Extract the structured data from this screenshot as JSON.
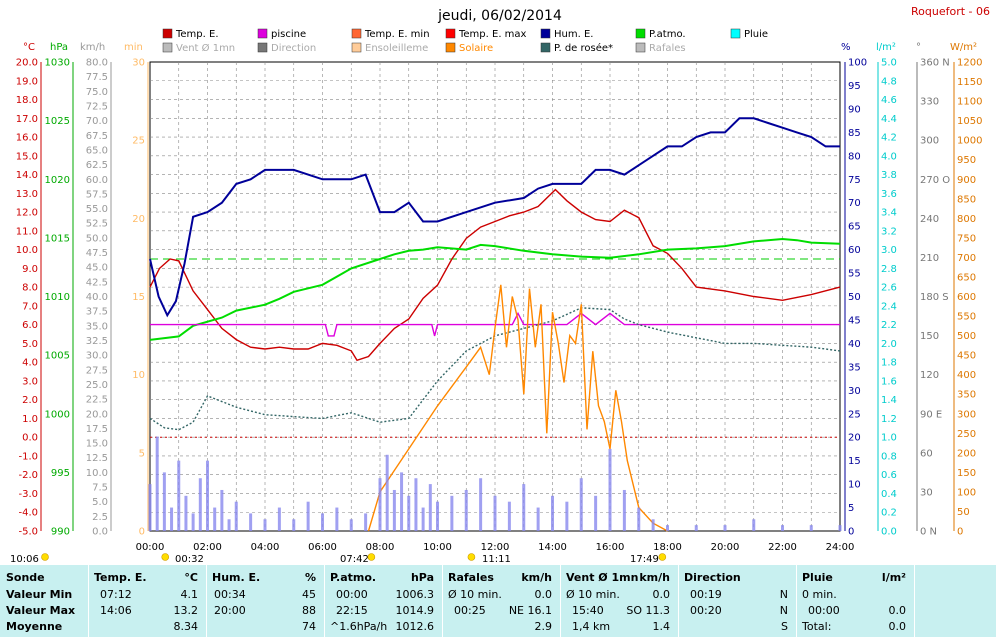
{
  "header": {
    "title": "jeudi, 06/02/2014",
    "station": "Roquefort - 06"
  },
  "legend": [
    {
      "label": "Temp. E.",
      "color": "#cc0000"
    },
    {
      "label": "piscine",
      "color": "#dd00dd"
    },
    {
      "label": "Temp. E. min",
      "color": "#ff6633"
    },
    {
      "label": "Temp. E. max",
      "color": "#ff0000"
    },
    {
      "label": "Hum. E.",
      "color": "#000099"
    },
    {
      "label": "P.atmo.",
      "color": "#00dd00"
    },
    {
      "label": "Pluie",
      "color": "#00ffff"
    },
    {
      "label": "Vent Ø 1mn",
      "color": "#bbbbbb"
    },
    {
      "label": "Direction",
      "color": "#777777"
    },
    {
      "label": "Ensoleilleme",
      "color": "#ffcc99"
    },
    {
      "label": "Solaire",
      "color": "#ff8800"
    },
    {
      "label": "P. de rosée*",
      "color": "#336666"
    },
    {
      "label": "Rafales",
      "color": "#bbbbbb"
    }
  ],
  "axes_units": {
    "temp": "°C",
    "press": "hPa",
    "wind": "km/h",
    "min": "min",
    "hum": "%",
    "rain": "l/m²",
    "dir": "°",
    "solar": "W/m²"
  },
  "axes_ticks": {
    "temp": [
      "20.0",
      "19.0",
      "18.0",
      "17.0",
      "16.0",
      "15.0",
      "14.0",
      "13.0",
      "12.0",
      "11.0",
      "10.0",
      "9.0",
      "8.0",
      "7.0",
      "6.0",
      "5.0",
      "4.0",
      "3.0",
      "2.0",
      "1.0",
      "0.0",
      "-1.0",
      "-2.0",
      "-3.0",
      "-4.0",
      "-5.0"
    ],
    "press": [
      "1030",
      "1025",
      "1020",
      "1015",
      "1010",
      "1005",
      "1000",
      "995",
      "990"
    ],
    "wind": [
      "80.0",
      "77.5",
      "75.0",
      "72.5",
      "70.0",
      "67.5",
      "65.0",
      "62.5",
      "60.0",
      "57.5",
      "55.0",
      "52.5",
      "50.0",
      "47.5",
      "45.0",
      "42.5",
      "40.0",
      "37.5",
      "35.0",
      "32.5",
      "30.0",
      "27.5",
      "25.0",
      "22.5",
      "20.0",
      "17.5",
      "15.0",
      "12.5",
      "10.0",
      "7.5",
      "5.0",
      "2.5",
      "0.0"
    ],
    "min": [
      "30",
      "25",
      "20",
      "15",
      "10",
      "5",
      "0"
    ],
    "hum": [
      "100",
      "95",
      "90",
      "85",
      "80",
      "75",
      "70",
      "65",
      "60",
      "55",
      "50",
      "45",
      "40",
      "35",
      "30",
      "25",
      "20",
      "15",
      "10",
      "5",
      "0"
    ],
    "rain": [
      "5.0",
      "4.8",
      "4.6",
      "4.4",
      "4.2",
      "4.0",
      "3.8",
      "3.6",
      "3.4",
      "3.2",
      "3.0",
      "2.8",
      "2.6",
      "2.4",
      "2.2",
      "2.0",
      "1.8",
      "1.6",
      "1.4",
      "1.2",
      "1.0",
      "0.8",
      "0.6",
      "0.4",
      "0.2",
      "0.0"
    ],
    "dir": [
      "360 N",
      "330",
      "300",
      "270 O",
      "240",
      "210",
      "180 S",
      "150",
      "120",
      "90 E",
      "60",
      "30",
      "0 N"
    ],
    "solar": [
      "1200",
      "1150",
      "1100",
      "1050",
      "1000",
      "950",
      "900",
      "850",
      "800",
      "750",
      "700",
      "650",
      "600",
      "550",
      "500",
      "450",
      "400",
      "350",
      "300",
      "250",
      "200",
      "150",
      "100",
      "50",
      "0"
    ],
    "time": [
      "00:00",
      "02:00",
      "04:00",
      "06:00",
      "08:00",
      "10:00",
      "12:00",
      "14:00",
      "16:00",
      "18:00",
      "20:00",
      "22:00",
      "24:00"
    ]
  },
  "sun_events": {
    "daylength": "10:06",
    "moon_set": "00:32",
    "sunrise": "07:42",
    "transit": "11:11",
    "sunset": "17:49"
  },
  "summary": {
    "sonde": {
      "header": "Sonde",
      "rows": [
        "Valeur Min",
        "Valeur Max",
        "Moyenne"
      ]
    },
    "temp": {
      "header": "Temp. E.",
      "unit": "°C",
      "min_time": "07:12",
      "min_val": "4.1",
      "max_time": "14:06",
      "max_val": "13.2",
      "avg_val": "8.34"
    },
    "hum": {
      "header": "Hum. E.",
      "unit": "%",
      "min_time": "00:34",
      "min_val": "45",
      "max_time": "20:00",
      "max_val": "88",
      "avg_val": "74"
    },
    "press": {
      "header": "P.atmo.",
      "unit": "hPa",
      "min_time": "00:00",
      "min_val": "1006.3",
      "max_time": "22:15",
      "max_val": "1014.9",
      "avg_note": "^1.6hPa/h",
      "avg_val": "1012.6"
    },
    "gust": {
      "header": "Rafales",
      "unit": "km/h",
      "min_note": "Ø 10 min.",
      "min_val": "0.0",
      "max_time": "00:25",
      "max_val": "NE 16.1",
      "avg_val": "2.9"
    },
    "wind": {
      "header": "Vent Ø 1mn",
      "unit": "km/h",
      "min_note": "Ø 10 min.",
      "min_val": "0.0",
      "max_time": "15:40",
      "max_val": "SO 11.3",
      "avg_note": "1,4 km",
      "avg_val": "1.4"
    },
    "dir": {
      "header": "Direction",
      "min_time": "00:19",
      "min_val": "N",
      "max_time": "00:20",
      "max_val": "N",
      "avg_val": "S"
    },
    "rain": {
      "header": "Pluie",
      "unit": "l/m²",
      "min_note": "0 min.",
      "max_time": "00:00",
      "max_val": "0.0",
      "avg_note": "Total:",
      "avg_val": "0.0"
    }
  },
  "chart_data": {
    "type": "line",
    "title": "jeudi, 06/02/2014",
    "x_unit": "hours",
    "xlim": [
      0,
      24
    ],
    "temp_axis_range": [
      -5,
      20
    ],
    "humidity_axis_range": [
      0,
      100
    ],
    "pressure_axis_range": [
      990,
      1030
    ],
    "wind_axis_range": [
      0,
      80
    ],
    "solar_axis_range": [
      0,
      1200
    ],
    "series": [
      {
        "name": "Temp. E.",
        "axis": "temp",
        "color": "#cc0000",
        "x": [
          0,
          0.33,
          0.7,
          1.0,
          1.5,
          2.0,
          2.5,
          3.0,
          3.5,
          4.0,
          4.5,
          5.0,
          5.5,
          6.0,
          6.5,
          7.0,
          7.2,
          7.6,
          8.0,
          8.5,
          9.0,
          9.5,
          10.0,
          10.5,
          11.0,
          11.5,
          12.0,
          12.5,
          13.0,
          13.5,
          14.1,
          14.5,
          15.0,
          15.5,
          16.0,
          16.5,
          17.0,
          17.5,
          18.0,
          18.5,
          19.0,
          20.0,
          21.0,
          22.0,
          23.0,
          24.0
        ],
        "y": [
          8.0,
          9.0,
          9.5,
          9.4,
          7.8,
          6.8,
          5.8,
          5.2,
          4.8,
          4.7,
          4.8,
          4.7,
          4.7,
          5.0,
          4.9,
          4.6,
          4.1,
          4.3,
          5.0,
          5.8,
          6.3,
          7.4,
          8.1,
          9.5,
          10.6,
          11.2,
          11.5,
          11.8,
          12.0,
          12.3,
          13.2,
          12.6,
          12.0,
          11.6,
          11.5,
          12.1,
          11.7,
          10.2,
          9.8,
          9.0,
          8.0,
          7.8,
          7.5,
          7.3,
          7.6,
          8.0
        ]
      },
      {
        "name": "Hum. E.",
        "axis": "hum",
        "color": "#000099",
        "x": [
          0,
          0.3,
          0.6,
          0.9,
          1.2,
          1.5,
          2.0,
          2.5,
          3.0,
          3.5,
          4.0,
          5.0,
          6.0,
          7.0,
          7.5,
          8.0,
          8.5,
          9.0,
          9.5,
          10.0,
          11.0,
          12.0,
          13.0,
          13.5,
          14.0,
          14.5,
          15.0,
          15.5,
          16.0,
          16.5,
          17.0,
          17.5,
          18.0,
          18.5,
          19.0,
          19.5,
          20.0,
          20.5,
          21.0,
          21.5,
          22.0,
          22.5,
          23.0,
          23.5,
          24.0
        ],
        "y": [
          58,
          50,
          46,
          49,
          57,
          67,
          68,
          70,
          74,
          75,
          77,
          77,
          75,
          75,
          76,
          68,
          68,
          70,
          66,
          66,
          68,
          70,
          71,
          73,
          74,
          74,
          74,
          77,
          77,
          76,
          78,
          80,
          82,
          82,
          84,
          85,
          85,
          88,
          88,
          87,
          86,
          85,
          84,
          82,
          82
        ]
      },
      {
        "name": "P.atmo.",
        "axis": "press",
        "color": "#00dd00",
        "x": [
          0,
          1.0,
          1.5,
          2.5,
          3.0,
          4.0,
          4.5,
          5.0,
          6.0,
          6.5,
          7.0,
          8.0,
          8.5,
          9.0,
          9.5,
          10.0,
          11.0,
          11.5,
          12.0,
          13.0,
          14.0,
          15.0,
          16.0,
          17.0,
          18.0,
          19.0,
          20.0,
          21.0,
          22.0,
          22.5,
          23.0,
          24.0
        ],
        "y": [
          1006.3,
          1006.6,
          1007.5,
          1008.2,
          1008.8,
          1009.3,
          1009.8,
          1010.4,
          1011.0,
          1011.7,
          1012.4,
          1013.2,
          1013.6,
          1013.9,
          1014.0,
          1014.2,
          1014.0,
          1014.4,
          1014.3,
          1013.9,
          1013.6,
          1013.4,
          1013.3,
          1013.6,
          1014.0,
          1014.1,
          1014.3,
          1014.7,
          1014.9,
          1014.8,
          1014.6,
          1014.5
        ]
      },
      {
        "name": "piscine",
        "axis": "temp",
        "color": "#dd00dd",
        "x": [
          0,
          6.1,
          6.2,
          6.4,
          6.5,
          9.8,
          9.9,
          10.0,
          12.6,
          12.8,
          13.0,
          14.5,
          15.0,
          15.5,
          16.0,
          16.5,
          17.0,
          24.0
        ],
        "y": [
          6.0,
          6.0,
          5.4,
          5.4,
          6.0,
          6.0,
          5.4,
          6.0,
          6.0,
          6.6,
          6.0,
          6.0,
          6.6,
          6.0,
          6.6,
          6.0,
          6.0,
          6.0
        ]
      },
      {
        "name": "P. de rosée*",
        "axis": "temp",
        "color": "#336666",
        "x": [
          0,
          0.5,
          1.0,
          1.5,
          2.0,
          3.0,
          4.0,
          5.0,
          6.0,
          7.0,
          8.0,
          9.0,
          10.0,
          11.0,
          12.0,
          13.0,
          14.0,
          15.0,
          16.0,
          16.5,
          17.0,
          18.0,
          19.0,
          20.0,
          21.0,
          22.0,
          23.0,
          24.0
        ],
        "y": [
          1.0,
          0.5,
          0.4,
          0.8,
          2.2,
          1.6,
          1.2,
          1.1,
          1.0,
          1.3,
          0.8,
          1.0,
          3.0,
          4.6,
          5.4,
          5.8,
          6.2,
          6.9,
          6.8,
          6.3,
          6.0,
          5.6,
          5.3,
          5.0,
          5.0,
          4.9,
          4.8,
          4.6
        ]
      },
      {
        "name": "Solaire",
        "axis": "solar",
        "color": "#ff8800",
        "x": [
          7.6,
          8.0,
          9.0,
          10.0,
          11.0,
          11.5,
          11.8,
          12.0,
          12.2,
          12.4,
          12.6,
          12.8,
          13.0,
          13.2,
          13.4,
          13.6,
          13.8,
          14.0,
          14.2,
          14.4,
          14.6,
          14.8,
          15.0,
          15.2,
          15.4,
          15.6,
          15.8,
          16.0,
          16.2,
          16.4,
          16.6,
          17.0,
          17.5,
          18.0
        ],
        "y": [
          0,
          100,
          210,
          320,
          420,
          470,
          400,
          520,
          630,
          470,
          600,
          540,
          350,
          620,
          470,
          580,
          250,
          560,
          480,
          380,
          500,
          480,
          580,
          260,
          460,
          320,
          280,
          210,
          360,
          280,
          180,
          60,
          20,
          0
        ]
      },
      {
        "name": "Rafales",
        "axis": "wind",
        "color": "#8888ee",
        "x": [
          0,
          0.25,
          0.5,
          0.75,
          1.0,
          1.25,
          1.5,
          1.75,
          2.0,
          2.25,
          2.5,
          2.75,
          3.0,
          3.5,
          4.0,
          4.5,
          5.0,
          5.5,
          6.0,
          6.5,
          7.0,
          7.5,
          8.0,
          8.25,
          8.5,
          8.75,
          9.0,
          9.25,
          9.5,
          9.75,
          10.0,
          10.5,
          11.0,
          11.5,
          12.0,
          12.5,
          13.0,
          13.5,
          14.0,
          14.5,
          15.0,
          15.5,
          16.0,
          16.5,
          17.0,
          17.5,
          18.0,
          19.0,
          20.0,
          21.0,
          22.0,
          23.0,
          24.0
        ],
        "y": [
          8.0,
          16.1,
          10.0,
          4.0,
          12.0,
          6.0,
          3.0,
          9.0,
          12.0,
          4.0,
          7.0,
          2.0,
          5.0,
          3.0,
          2.0,
          4.0,
          2.0,
          5.0,
          3.0,
          4.0,
          2.0,
          3.0,
          9.0,
          13.0,
          7.0,
          10.0,
          6.0,
          9.0,
          4.0,
          8.0,
          5.0,
          6.0,
          7.0,
          9.0,
          6.0,
          5.0,
          8.0,
          4.0,
          6.0,
          5.0,
          9.0,
          6.0,
          14.0,
          7.0,
          4.0,
          2.0,
          1.0,
          1.0,
          1.0,
          2.0,
          1.0,
          1.0,
          1.0
        ]
      }
    ],
    "reference_lines": [
      {
        "axis": "temp",
        "value": 0,
        "color": "#cc0000",
        "style": "dotted"
      },
      {
        "axis": "hum",
        "value": 58,
        "color": "#00cc00",
        "style": "dashed"
      }
    ]
  }
}
